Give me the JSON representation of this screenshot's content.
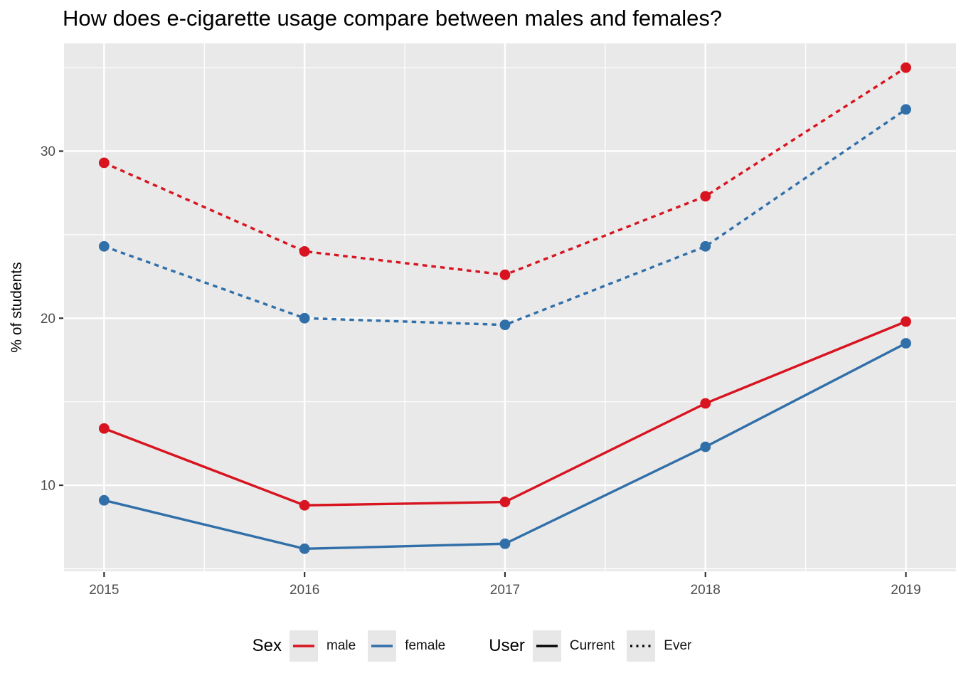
{
  "title": "How does e-cigarette usage compare between males and females?",
  "colors": {
    "male": "#D7141F",
    "female": "#316FA9",
    "user_key": "#000000",
    "panel_bg": "#E9E9E9",
    "grid": "#FFFFFF",
    "tick_label": "#4D4D4D",
    "tick_mark": "#333333",
    "legend_key_bg": "#E7E7E7"
  },
  "chart_data": {
    "type": "line",
    "title": "How does e-cigarette usage compare between males and females?",
    "xlabel": "",
    "ylabel": "% of students",
    "x": [
      2015,
      2016,
      2017,
      2018,
      2019
    ],
    "series": [
      {
        "name": "male-ever",
        "sex": "male",
        "user": "Ever",
        "color": "#D7141F",
        "linestyle": "dotted",
        "values": [
          29.3,
          24.0,
          22.6,
          27.3,
          35.0
        ]
      },
      {
        "name": "female-ever",
        "sex": "female",
        "user": "Ever",
        "color": "#316FA9",
        "linestyle": "dotted",
        "values": [
          24.3,
          20.0,
          19.6,
          24.3,
          32.5
        ]
      },
      {
        "name": "male-current",
        "sex": "male",
        "user": "Current",
        "color": "#D7141F",
        "linestyle": "solid",
        "values": [
          13.4,
          8.8,
          9.0,
          14.9,
          19.8
        ]
      },
      {
        "name": "female-current",
        "sex": "female",
        "user": "Current",
        "color": "#316FA9",
        "linestyle": "solid",
        "values": [
          9.1,
          6.2,
          6.5,
          12.3,
          18.5
        ]
      }
    ],
    "yticks": [
      10,
      20,
      30
    ],
    "yticks_minor": [
      5,
      15,
      25,
      35
    ],
    "xticks_minor": [
      2015.5,
      2016.5,
      2017.5,
      2018.5
    ],
    "ylim": [
      4.85,
      36.45
    ],
    "xlim": [
      2014.8,
      2019.25
    ],
    "grid": true,
    "legend": {
      "position": "bottom",
      "groups": [
        {
          "title": "Sex",
          "items": [
            {
              "label": "male",
              "color": "#D7141F",
              "style": "solid"
            },
            {
              "label": "female",
              "color": "#316FA9",
              "style": "solid"
            }
          ]
        },
        {
          "title": "User",
          "items": [
            {
              "label": "Current",
              "color": "#000000",
              "style": "solid"
            },
            {
              "label": "Ever",
              "color": "#000000",
              "style": "dotted"
            }
          ]
        }
      ]
    }
  }
}
